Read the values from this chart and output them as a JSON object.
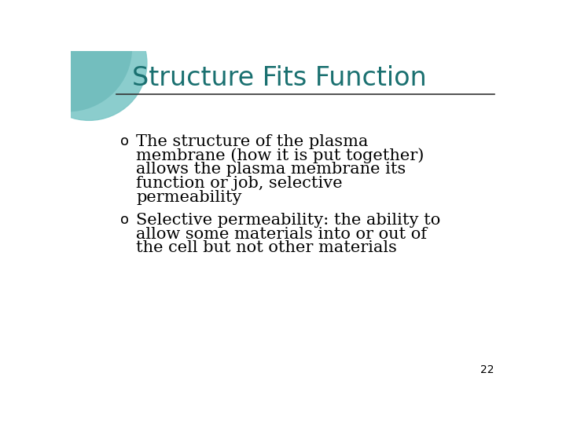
{
  "title": "Structure Fits Function",
  "title_color": "#1A7070",
  "background_color": "#FFFFFF",
  "line_color": "#333333",
  "text_color": "#000000",
  "page_number": "22",
  "bullet1_lines": [
    "The structure of the plasma",
    "membrane (how it is put together)",
    "allows the plasma membrane its",
    "function or job, selective",
    "permeability"
  ],
  "bullet2_lines": [
    "Selective permeability: the ability to",
    "allow some materials into or out of",
    "the cell but not other materials"
  ],
  "circle_color1": "#1A6B6B",
  "circle_color2": "#7EC8C8",
  "title_fontsize": 24,
  "body_fontsize": 15,
  "page_num_fontsize": 10,
  "bullet_fontsize": 13
}
